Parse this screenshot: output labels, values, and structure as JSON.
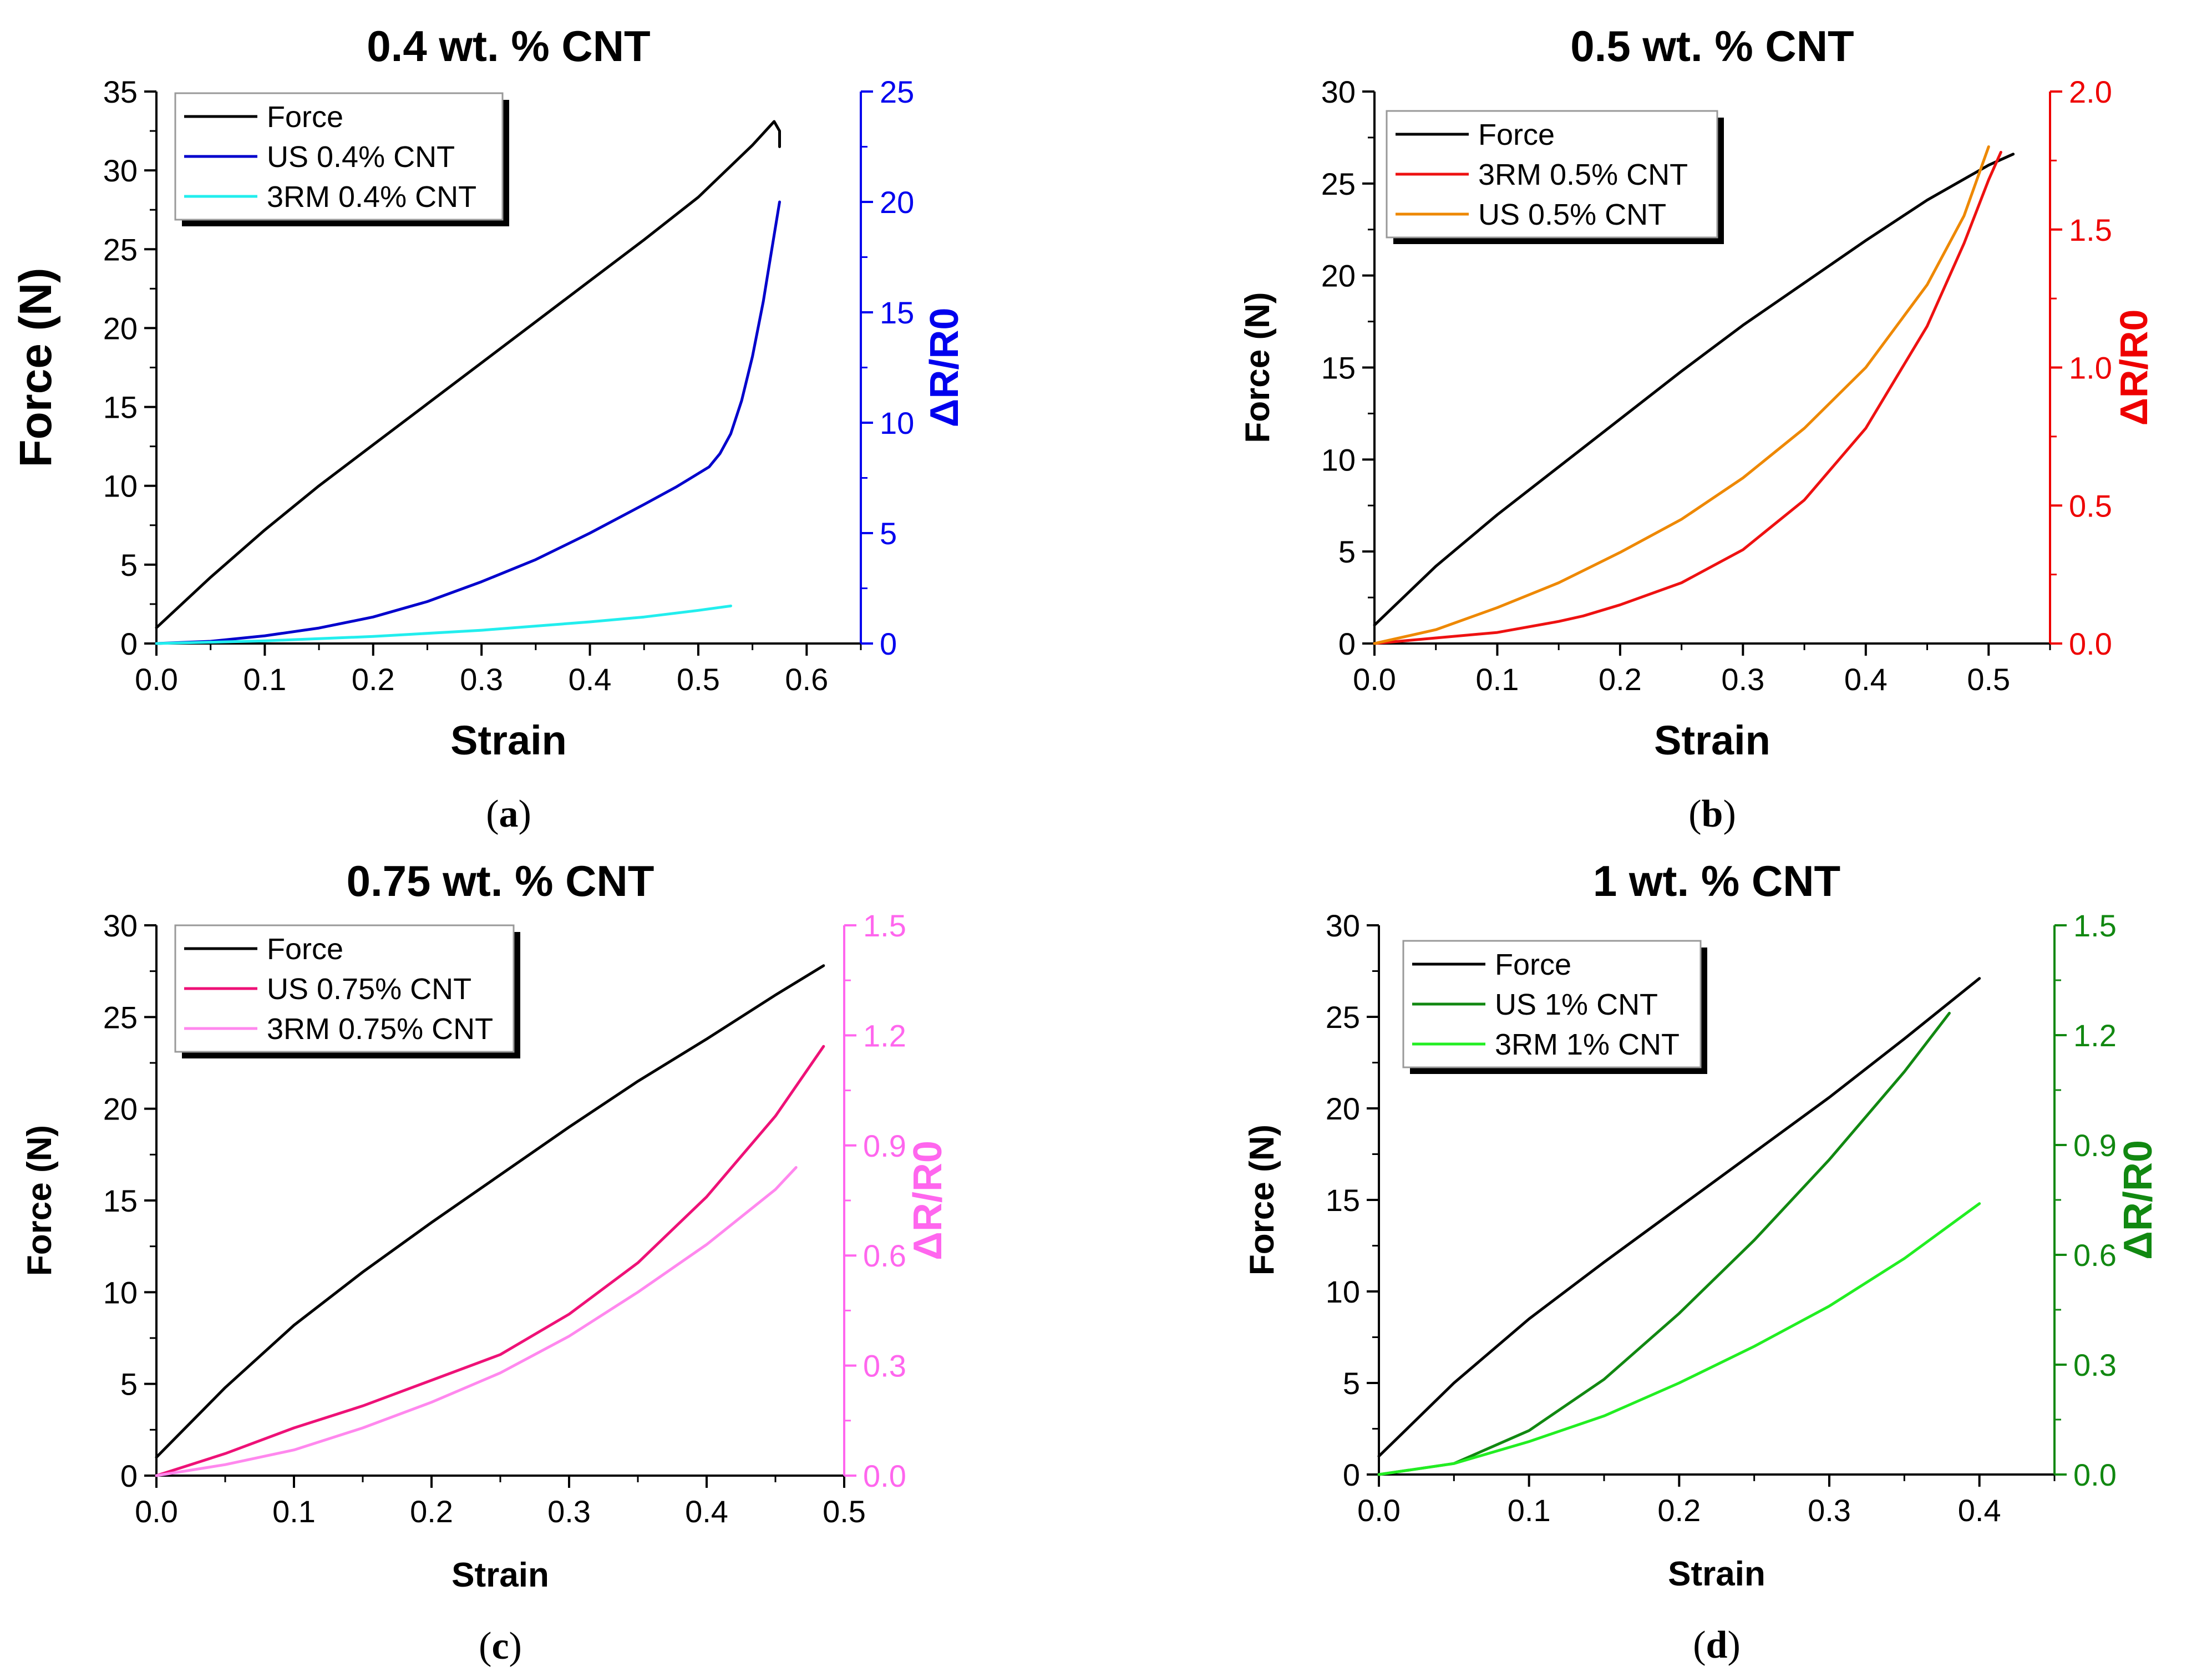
{
  "chart_data": [
    {
      "type": "line",
      "title": "0.4 wt. % CNT",
      "caption_letter": "a",
      "xlabel": "Strain",
      "ylabel": "Force (N)",
      "y2label": "ΔR/R0",
      "xlim": [
        0,
        0.65
      ],
      "x_ticks": [
        0.0,
        0.1,
        0.2,
        0.3,
        0.4,
        0.5,
        0.6
      ],
      "ylim": [
        0,
        35
      ],
      "y_ticks": [
        0,
        5,
        10,
        15,
        20,
        25,
        30,
        35
      ],
      "y2lim": [
        0,
        25
      ],
      "y2_ticks": [
        0,
        5,
        10,
        15,
        20,
        25
      ],
      "y2_color": "#0000ee",
      "legend": "top-left",
      "series": [
        {
          "name": "Force",
          "axis": "left",
          "color": "#000000",
          "x": [
            0,
            0.05,
            0.1,
            0.15,
            0.2,
            0.25,
            0.3,
            0.35,
            0.4,
            0.45,
            0.5,
            0.55,
            0.57,
            0.575,
            0.575
          ],
          "y": [
            1,
            4.2,
            7.2,
            10,
            12.6,
            15.2,
            17.8,
            20.4,
            23,
            25.6,
            28.3,
            31.6,
            33.1,
            32.5,
            31.5
          ]
        },
        {
          "name": "US 0.4% CNT",
          "axis": "right",
          "color": "#0000cc",
          "x": [
            0,
            0.05,
            0.1,
            0.15,
            0.2,
            0.25,
            0.3,
            0.35,
            0.4,
            0.45,
            0.48,
            0.49,
            0.51,
            0.52,
            0.53,
            0.54,
            0.55,
            0.56,
            0.565,
            0.57,
            0.575
          ],
          "y": [
            0,
            0.1,
            0.35,
            0.7,
            1.2,
            1.9,
            2.8,
            3.8,
            5,
            6.3,
            7.1,
            7.4,
            8,
            8.6,
            9.5,
            11,
            13,
            15.5,
            17,
            18.5,
            20
          ]
        },
        {
          "name": "3RM 0.4% CNT",
          "axis": "right",
          "color": "#22eeee",
          "x": [
            0,
            0.1,
            0.2,
            0.3,
            0.4,
            0.45,
            0.5,
            0.53
          ],
          "y": [
            0,
            0.12,
            0.32,
            0.6,
            0.98,
            1.2,
            1.5,
            1.7
          ]
        }
      ]
    },
    {
      "type": "line",
      "title": "0.5 wt. % CNT",
      "caption_letter": "b",
      "xlabel": "Strain",
      "ylabel": "Force (N)",
      "y2label": "ΔR/R0",
      "xlim": [
        0,
        0.55
      ],
      "x_ticks": [
        0.0,
        0.1,
        0.2,
        0.3,
        0.4,
        0.5
      ],
      "ylim": [
        0,
        30
      ],
      "y_ticks": [
        0,
        5,
        10,
        15,
        20,
        25,
        30
      ],
      "y2lim": [
        0,
        2.0
      ],
      "y2_ticks": [
        0.0,
        0.5,
        1.0,
        1.5,
        2.0
      ],
      "y2_color": "#ee0000",
      "legend": "top-left",
      "series": [
        {
          "name": "Force",
          "axis": "left",
          "color": "#000000",
          "x": [
            0,
            0.05,
            0.1,
            0.15,
            0.2,
            0.25,
            0.3,
            0.35,
            0.4,
            0.45,
            0.5,
            0.52
          ],
          "y": [
            1,
            4.2,
            7,
            9.6,
            12.2,
            14.8,
            17.3,
            19.6,
            21.9,
            24.1,
            26,
            26.6
          ]
        },
        {
          "name": "3RM 0.5% CNT",
          "axis": "right",
          "color": "#ee1111",
          "x": [
            0,
            0.05,
            0.1,
            0.15,
            0.17,
            0.2,
            0.25,
            0.3,
            0.35,
            0.4,
            0.45,
            0.48,
            0.5,
            0.51
          ],
          "y": [
            0,
            0.02,
            0.04,
            0.08,
            0.1,
            0.14,
            0.22,
            0.34,
            0.52,
            0.78,
            1.15,
            1.45,
            1.68,
            1.78
          ]
        },
        {
          "name": "US 0.5% CNT",
          "axis": "right",
          "color": "#ee8800",
          "x": [
            0,
            0.05,
            0.1,
            0.15,
            0.2,
            0.25,
            0.3,
            0.35,
            0.4,
            0.45,
            0.48,
            0.5
          ],
          "y": [
            0,
            0.05,
            0.13,
            0.22,
            0.33,
            0.45,
            0.6,
            0.78,
            1.0,
            1.3,
            1.55,
            1.8
          ]
        }
      ]
    },
    {
      "type": "line",
      "title": "0.75 wt. % CNT",
      "caption_letter": "c",
      "xlabel": "Strain",
      "ylabel": "Force (N)",
      "y2label": "ΔR/R0",
      "xlim": [
        0,
        0.5
      ],
      "x_ticks": [
        0.0,
        0.1,
        0.2,
        0.3,
        0.4,
        0.5
      ],
      "ylim": [
        0,
        30
      ],
      "y_ticks": [
        0,
        5,
        10,
        15,
        20,
        25,
        30
      ],
      "y2lim": [
        0,
        1.5
      ],
      "y2_ticks": [
        0.0,
        0.3,
        0.6,
        0.9,
        1.2,
        1.5
      ],
      "y2_color": "#ff66ee",
      "legend": "top-left",
      "series": [
        {
          "name": "Force",
          "axis": "left",
          "color": "#000000",
          "x": [
            0,
            0.05,
            0.1,
            0.15,
            0.2,
            0.25,
            0.3,
            0.35,
            0.4,
            0.45,
            0.485
          ],
          "y": [
            1,
            4.8,
            8.2,
            11.1,
            13.8,
            16.4,
            19,
            21.5,
            23.8,
            26.2,
            27.8
          ]
        },
        {
          "name": "US 0.75% CNT",
          "axis": "right",
          "color": "#ee1177",
          "x": [
            0,
            0.05,
            0.1,
            0.15,
            0.2,
            0.25,
            0.3,
            0.35,
            0.4,
            0.45,
            0.485
          ],
          "y": [
            0,
            0.06,
            0.13,
            0.19,
            0.26,
            0.33,
            0.44,
            0.58,
            0.76,
            0.98,
            1.17
          ]
        },
        {
          "name": "3RM 0.75% CNT",
          "axis": "right",
          "color": "#ff88ee",
          "x": [
            0,
            0.05,
            0.1,
            0.15,
            0.2,
            0.25,
            0.3,
            0.35,
            0.4,
            0.45,
            0.465
          ],
          "y": [
            0,
            0.03,
            0.07,
            0.13,
            0.2,
            0.28,
            0.38,
            0.5,
            0.63,
            0.78,
            0.84
          ]
        }
      ]
    },
    {
      "type": "line",
      "title": "1 wt. % CNT",
      "caption_letter": "d",
      "xlabel": "Strain",
      "ylabel": "Force (N)",
      "y2label": "ΔR/R0",
      "xlim": [
        0,
        0.45
      ],
      "x_ticks": [
        0.0,
        0.1,
        0.2,
        0.3,
        0.4
      ],
      "ylim": [
        0,
        30
      ],
      "y_ticks": [
        0,
        5,
        10,
        15,
        20,
        25,
        30
      ],
      "y2lim": [
        0,
        1.5
      ],
      "y2_ticks": [
        0.0,
        0.3,
        0.6,
        0.9,
        1.2,
        1.5
      ],
      "y2_color": "#118811",
      "legend": "top-left",
      "series": [
        {
          "name": "Force",
          "axis": "left",
          "color": "#000000",
          "x": [
            0,
            0.05,
            0.1,
            0.15,
            0.2,
            0.25,
            0.3,
            0.35,
            0.4
          ],
          "y": [
            1,
            5,
            8.5,
            11.6,
            14.6,
            17.6,
            20.6,
            23.8,
            27.1
          ]
        },
        {
          "name": "US 1% CNT",
          "axis": "right",
          "color": "#118811",
          "x": [
            0,
            0.05,
            0.1,
            0.15,
            0.2,
            0.25,
            0.3,
            0.35,
            0.38
          ],
          "y": [
            0,
            0.03,
            0.12,
            0.26,
            0.44,
            0.64,
            0.86,
            1.1,
            1.26
          ]
        },
        {
          "name": "3RM 1% CNT",
          "axis": "right",
          "color": "#22ee22",
          "x": [
            0,
            0.05,
            0.1,
            0.15,
            0.2,
            0.25,
            0.3,
            0.35,
            0.4
          ],
          "y": [
            0,
            0.03,
            0.09,
            0.16,
            0.25,
            0.35,
            0.46,
            0.59,
            0.74
          ]
        }
      ]
    }
  ]
}
